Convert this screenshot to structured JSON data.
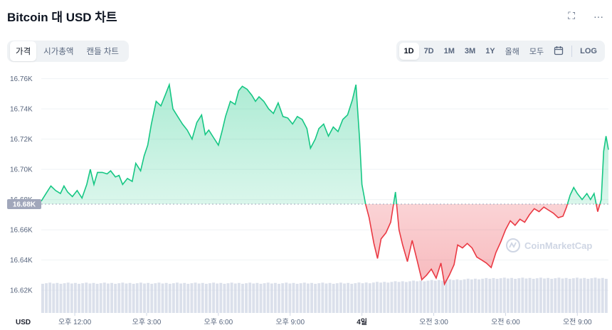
{
  "title": "Bitcoin 대 USD 차트",
  "icons": {
    "fullscreen": "fullscreen-icon",
    "more": "more-icon",
    "calendar": "calendar-icon"
  },
  "top_icons": {
    "fullscreen_glyph": "⛶",
    "more_glyph": "···"
  },
  "tabs": [
    {
      "label": "가격",
      "active": true
    },
    {
      "label": "시가총액",
      "active": false
    },
    {
      "label": "캔들 차트",
      "active": false
    }
  ],
  "ranges": [
    {
      "label": "1D",
      "active": true
    },
    {
      "label": "7D",
      "active": false
    },
    {
      "label": "1M",
      "active": false
    },
    {
      "label": "3M",
      "active": false
    },
    {
      "label": "1Y",
      "active": false
    },
    {
      "label": "올해",
      "active": false
    },
    {
      "label": "모두",
      "active": false
    }
  ],
  "calendar_glyph": "📅",
  "log_label": "LOG",
  "watermark": "CoinMarketCap",
  "colors": {
    "up": "#16c784",
    "down": "#ea3943",
    "volume": "#cfd6e4",
    "baseline": "#a1a7bb"
  },
  "chart_data": {
    "type": "area",
    "currency_label": "USD",
    "baseline_value": 16.677,
    "baseline_label": "16.68K",
    "ylim": [
      16.605,
      16.765
    ],
    "yticks": [
      {
        "value": 16.62,
        "label": "16.62K"
      },
      {
        "value": 16.64,
        "label": "16.64K"
      },
      {
        "value": 16.66,
        "label": "16.66K"
      },
      {
        "value": 16.68,
        "label": "16.68K"
      },
      {
        "value": 16.7,
        "label": "16.70K"
      },
      {
        "value": 16.72,
        "label": "16.72K"
      },
      {
        "value": 16.74,
        "label": "16.74K"
      },
      {
        "value": 16.76,
        "label": "16.76K"
      }
    ],
    "xlim": [
      10.6,
      34.3
    ],
    "xticks": [
      {
        "value": 12,
        "label": "오후 12:00",
        "bold": false
      },
      {
        "value": 15,
        "label": "오후 3:00",
        "bold": false
      },
      {
        "value": 18,
        "label": "오후 6:00",
        "bold": false
      },
      {
        "value": 21,
        "label": "오후 9:00",
        "bold": false
      },
      {
        "value": 24,
        "label": "4일",
        "bold": true
      },
      {
        "value": 27,
        "label": "오전 3:00",
        "bold": false
      },
      {
        "value": 30,
        "label": "오전 6:00",
        "bold": false
      },
      {
        "value": 33,
        "label": "오전 9:00",
        "bold": false
      }
    ],
    "series": [
      {
        "values": [
          [
            10.6,
            16.679
          ],
          [
            10.8,
            16.684
          ],
          [
            11.0,
            16.689
          ],
          [
            11.2,
            16.686
          ],
          [
            11.4,
            16.684
          ],
          [
            11.55,
            16.689
          ],
          [
            11.7,
            16.685
          ],
          [
            11.9,
            16.682
          ],
          [
            12.1,
            16.686
          ],
          [
            12.3,
            16.681
          ],
          [
            12.5,
            16.69
          ],
          [
            12.65,
            16.7
          ],
          [
            12.8,
            16.69
          ],
          [
            12.95,
            16.698
          ],
          [
            13.15,
            16.698
          ],
          [
            13.35,
            16.697
          ],
          [
            13.5,
            16.699
          ],
          [
            13.7,
            16.695
          ],
          [
            13.85,
            16.696
          ],
          [
            14.0,
            16.69
          ],
          [
            14.2,
            16.694
          ],
          [
            14.4,
            16.692
          ],
          [
            14.55,
            16.704
          ],
          [
            14.75,
            16.699
          ],
          [
            14.9,
            16.709
          ],
          [
            15.05,
            16.716
          ],
          [
            15.2,
            16.73
          ],
          [
            15.4,
            16.745
          ],
          [
            15.6,
            16.742
          ],
          [
            15.8,
            16.75
          ],
          [
            15.95,
            16.756
          ],
          [
            16.1,
            16.74
          ],
          [
            16.3,
            16.735
          ],
          [
            16.5,
            16.73
          ],
          [
            16.7,
            16.726
          ],
          [
            16.9,
            16.72
          ],
          [
            17.1,
            16.731
          ],
          [
            17.3,
            16.736
          ],
          [
            17.45,
            16.723
          ],
          [
            17.6,
            16.726
          ],
          [
            17.8,
            16.721
          ],
          [
            18.0,
            16.716
          ],
          [
            18.15,
            16.725
          ],
          [
            18.3,
            16.735
          ],
          [
            18.5,
            16.745
          ],
          [
            18.7,
            16.743
          ],
          [
            18.85,
            16.752
          ],
          [
            19.0,
            16.755
          ],
          [
            19.2,
            16.753
          ],
          [
            19.4,
            16.749
          ],
          [
            19.55,
            16.745
          ],
          [
            19.7,
            16.748
          ],
          [
            19.9,
            16.745
          ],
          [
            20.1,
            16.74
          ],
          [
            20.3,
            16.737
          ],
          [
            20.5,
            16.744
          ],
          [
            20.7,
            16.735
          ],
          [
            20.9,
            16.734
          ],
          [
            21.1,
            16.73
          ],
          [
            21.3,
            16.735
          ],
          [
            21.5,
            16.733
          ],
          [
            21.7,
            16.727
          ],
          [
            21.85,
            16.714
          ],
          [
            22.05,
            16.72
          ],
          [
            22.2,
            16.727
          ],
          [
            22.4,
            16.73
          ],
          [
            22.6,
            16.722
          ],
          [
            22.8,
            16.728
          ],
          [
            23.0,
            16.725
          ],
          [
            23.2,
            16.733
          ],
          [
            23.4,
            16.736
          ],
          [
            23.6,
            16.746
          ],
          [
            23.75,
            16.756
          ],
          [
            23.9,
            16.72
          ],
          [
            24.0,
            16.69
          ],
          [
            24.15,
            16.677
          ],
          [
            24.3,
            16.668
          ],
          [
            24.5,
            16.651
          ],
          [
            24.65,
            16.641
          ],
          [
            24.8,
            16.654
          ],
          [
            25.0,
            16.658
          ],
          [
            25.2,
            16.665
          ],
          [
            25.4,
            16.685
          ],
          [
            25.55,
            16.66
          ],
          [
            25.7,
            16.65
          ],
          [
            25.9,
            16.639
          ],
          [
            26.1,
            16.653
          ],
          [
            26.3,
            16.64
          ],
          [
            26.5,
            16.627
          ],
          [
            26.7,
            16.63
          ],
          [
            26.9,
            16.634
          ],
          [
            27.1,
            16.628
          ],
          [
            27.3,
            16.638
          ],
          [
            27.45,
            16.624
          ],
          [
            27.65,
            16.63
          ],
          [
            27.85,
            16.637
          ],
          [
            28.0,
            16.65
          ],
          [
            28.2,
            16.648
          ],
          [
            28.4,
            16.651
          ],
          [
            28.6,
            16.648
          ],
          [
            28.8,
            16.642
          ],
          [
            29.0,
            16.64
          ],
          [
            29.2,
            16.638
          ],
          [
            29.4,
            16.635
          ],
          [
            29.6,
            16.645
          ],
          [
            29.8,
            16.652
          ],
          [
            30.0,
            16.66
          ],
          [
            30.2,
            16.666
          ],
          [
            30.4,
            16.663
          ],
          [
            30.6,
            16.667
          ],
          [
            30.8,
            16.665
          ],
          [
            31.0,
            16.67
          ],
          [
            31.2,
            16.674
          ],
          [
            31.4,
            16.672
          ],
          [
            31.6,
            16.675
          ],
          [
            31.8,
            16.673
          ],
          [
            32.0,
            16.671
          ],
          [
            32.2,
            16.668
          ],
          [
            32.4,
            16.669
          ],
          [
            32.55,
            16.675
          ],
          [
            32.7,
            16.683
          ],
          [
            32.85,
            16.688
          ],
          [
            33.0,
            16.684
          ],
          [
            33.2,
            16.68
          ],
          [
            33.4,
            16.684
          ],
          [
            33.55,
            16.68
          ],
          [
            33.7,
            16.684
          ],
          [
            33.85,
            16.672
          ],
          [
            34.0,
            16.68
          ],
          [
            34.1,
            16.712
          ],
          [
            34.2,
            16.722
          ],
          [
            34.3,
            16.713
          ]
        ]
      }
    ]
  }
}
